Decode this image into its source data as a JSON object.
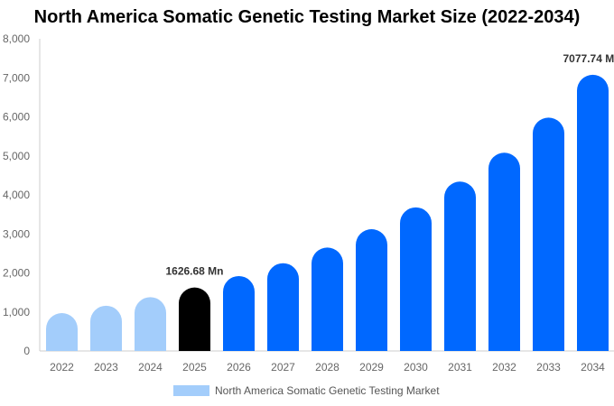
{
  "title": "North America Somatic Genetic Testing Market Size (2022-2034)",
  "legend": {
    "label": "North America Somatic Genetic Testing Market"
  },
  "colors": {
    "historical": "#a3cdfb",
    "current": "#000000",
    "forecast": "#0068ff",
    "axis": "#cccccc",
    "tick_text": "#666666",
    "annotation": "#333333"
  },
  "chart_data": {
    "type": "bar",
    "title": "North America Somatic Genetic Testing Market Size (2022-2034)",
    "xlabel": "",
    "ylabel": "",
    "ylim": [
      0,
      8000
    ],
    "yticks": [
      0,
      1000,
      2000,
      3000,
      4000,
      5000,
      6000,
      7000,
      8000
    ],
    "ytick_labels": [
      "0",
      "1,000",
      "2,000",
      "3,000",
      "4,000",
      "5,000",
      "6,000",
      "7,000",
      "8,000"
    ],
    "grid": false,
    "legend_position": "bottom",
    "categories": [
      "2022",
      "2023",
      "2024",
      "2025",
      "2026",
      "2027",
      "2028",
      "2029",
      "2030",
      "2031",
      "2032",
      "2033",
      "2034"
    ],
    "series": [
      {
        "name": "North America Somatic Genetic Testing Market",
        "values": [
          970,
          1160,
          1380,
          1626.68,
          1920,
          2250,
          2650,
          3120,
          3680,
          4340,
          5080,
          5980,
          7077.74
        ]
      }
    ],
    "bar_groups": [
      "historical",
      "historical",
      "historical",
      "current",
      "forecast",
      "forecast",
      "forecast",
      "forecast",
      "forecast",
      "forecast",
      "forecast",
      "forecast",
      "forecast"
    ],
    "annotations": [
      {
        "category": "2025",
        "text": "1626.68 Mn"
      },
      {
        "category": "2034",
        "text": "7077.74 Mn"
      }
    ]
  }
}
